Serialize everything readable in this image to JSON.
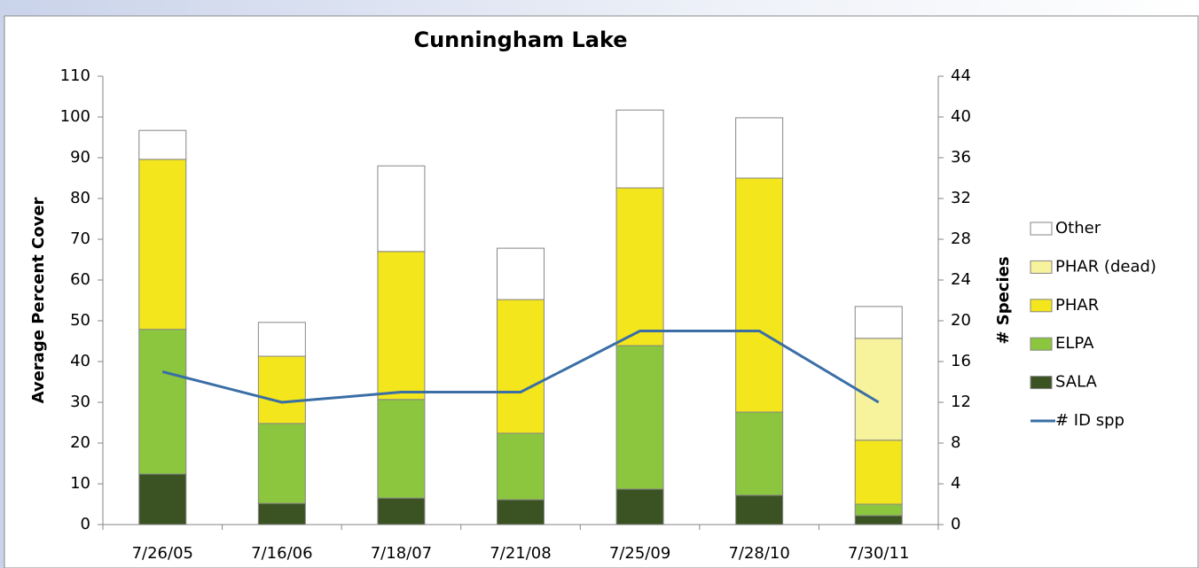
{
  "chart_data": {
    "type": "bar",
    "stacked": true,
    "title": "Cunningham Lake",
    "y_label": "Average Percent Cover",
    "y2_label": "# Species",
    "categories": [
      "7/26/05",
      "7/16/06",
      "7/18/07",
      "7/21/08",
      "7/25/09",
      "7/28/10",
      "7/30/11"
    ],
    "series": [
      {
        "name": "SALA",
        "color": "#3b5323",
        "values": [
          12.4,
          5.2,
          6.5,
          6.1,
          8.7,
          7.2,
          2.2
        ]
      },
      {
        "name": "ELPA",
        "color": "#8cc63f",
        "values": [
          35.5,
          19.6,
          24.2,
          16.3,
          35.2,
          20.4,
          2.8
        ]
      },
      {
        "name": "PHAR",
        "color": "#f3e61c",
        "values": [
          41.7,
          16.5,
          36.3,
          32.8,
          38.7,
          57.4,
          15.7
        ]
      },
      {
        "name": "PHAR (dead)",
        "color": "#f7f29c",
        "values": [
          0,
          0,
          0,
          0,
          0,
          0,
          25
        ]
      },
      {
        "name": "Other",
        "color": "#ffffff",
        "values": [
          7.1,
          8.3,
          21,
          12.6,
          19.1,
          14.8,
          7.8
        ]
      },
      {
        "name": "# ID spp",
        "color": "#3a6ea5",
        "type": "line",
        "axis": "y2",
        "values": [
          15,
          12,
          13,
          13,
          19,
          19,
          12
        ]
      }
    ],
    "ylim": [
      0,
      110
    ],
    "yticks": [
      0,
      10,
      20,
      30,
      40,
      50,
      60,
      70,
      80,
      90,
      100,
      110
    ],
    "y2lim": [
      0,
      44
    ],
    "y2ticks": [
      0,
      4,
      8,
      12,
      16,
      20,
      24,
      28,
      32,
      36,
      40,
      44
    ],
    "grid": false,
    "legend": "right"
  }
}
